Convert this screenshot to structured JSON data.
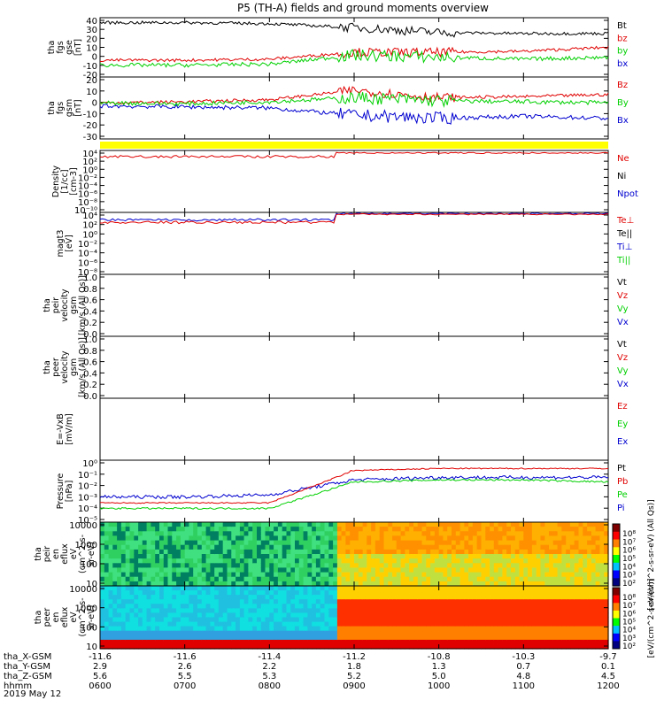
{
  "title": "P5 (TH-A) fields and ground moments overview",
  "colors": {
    "black": "#000000",
    "red": "#e00000",
    "green": "#00d000",
    "blue": "#0000d0",
    "yellow": "#ffff00",
    "frame": "#000000"
  },
  "time_ticks": [
    "0600",
    "0700",
    "0800",
    "0900",
    "1000",
    "1100",
    "1200"
  ],
  "time_tick_rows": [
    {
      "label": "tha_X-GSM",
      "values": [
        "-11.6",
        "-11.6",
        "-11.4",
        "-11.2",
        "-10.8",
        "-10.3",
        "-9.7"
      ]
    },
    {
      "label": "tha_Y-GSM",
      "values": [
        "2.9",
        "2.6",
        "2.2",
        "1.8",
        "1.3",
        "0.7",
        "0.1"
      ]
    },
    {
      "label": "tha_Z-GSM",
      "values": [
        "5.6",
        "5.5",
        "5.3",
        "5.2",
        "5.0",
        "4.8",
        "4.5"
      ]
    },
    {
      "label": "hhmm",
      "values": [
        "0600",
        "0700",
        "0800",
        "0900",
        "1000",
        "1100",
        "1200"
      ]
    }
  ],
  "date_label": "2019 May 12",
  "panels": [
    {
      "ylabel": [
        "tha",
        "fgs",
        "gse",
        "[nT]"
      ],
      "ticks": [
        "40",
        "30",
        "20",
        "10",
        "0",
        "-10",
        "-20"
      ],
      "legend": [
        {
          "t": "Bt",
          "c": "black"
        },
        {
          "t": "bz",
          "c": "red"
        },
        {
          "t": "by",
          "c": "green"
        },
        {
          "t": "bx",
          "c": "blue"
        }
      ]
    },
    {
      "ylabel": [
        "tha",
        "fgs",
        "gsm",
        "[nT]"
      ],
      "ticks": [
        "20",
        "10",
        "0",
        "-10",
        "-20",
        "-30"
      ],
      "legend": [
        {
          "t": "Bz",
          "c": "red"
        },
        {
          "t": "By",
          "c": "green"
        },
        {
          "t": "Bx",
          "c": "blue"
        }
      ]
    },
    {
      "ylabel": [
        "Density",
        "[1/cc]",
        "[cm-3]"
      ],
      "ticks": [
        "10⁴",
        "10²",
        "10⁰",
        "10⁻²",
        "10⁻⁴",
        "10⁻⁶",
        "10⁻⁸",
        "10⁻¹⁰"
      ],
      "legend": [
        {
          "t": "Ne",
          "c": "red"
        },
        {
          "t": "Ni",
          "c": "black"
        },
        {
          "t": "Npot",
          "c": "blue"
        }
      ]
    },
    {
      "ylabel": [
        "magt3",
        "[eV]"
      ],
      "ticks": [
        "10⁴",
        "10²",
        "10⁰",
        "10⁻²",
        "10⁻⁴",
        "10⁻⁶",
        "10⁻⁸"
      ],
      "legend": [
        {
          "t": "Te⊥",
          "c": "red"
        },
        {
          "t": "Te||",
          "c": "black"
        },
        {
          "t": "Ti⊥",
          "c": "blue"
        },
        {
          "t": "Ti||",
          "c": "green"
        }
      ]
    },
    {
      "ylabel": [
        "tha",
        "peir",
        "velocity",
        "gsm",
        "[km/s (All Qs)]"
      ],
      "ticks": [
        "1.0",
        "0.8",
        "0.6",
        "0.4",
        "0.2",
        "0.0"
      ],
      "legend": [
        {
          "t": "Vt",
          "c": "black"
        },
        {
          "t": "Vz",
          "c": "red"
        },
        {
          "t": "Vy",
          "c": "green"
        },
        {
          "t": "Vx",
          "c": "blue"
        }
      ]
    },
    {
      "ylabel": [
        "tha",
        "peer",
        "velocity",
        "gsm",
        "[km/s (All Qs)]"
      ],
      "ticks": [
        "1.0",
        "0.8",
        "0.6",
        "0.4",
        "0.2",
        "0.0"
      ],
      "legend": [
        {
          "t": "Vt",
          "c": "black"
        },
        {
          "t": "Vz",
          "c": "red"
        },
        {
          "t": "Vy",
          "c": "green"
        },
        {
          "t": "Vx",
          "c": "blue"
        }
      ]
    },
    {
      "ylabel": [
        "E=-VxB",
        "[mV/m]"
      ],
      "ticks": [],
      "legend": [
        {
          "t": "Ez",
          "c": "red"
        },
        {
          "t": "Ey",
          "c": "green"
        },
        {
          "t": "Ex",
          "c": "blue"
        }
      ]
    },
    {
      "ylabel": [
        "Pressure",
        "[nPa]"
      ],
      "ticks": [
        "10⁰",
        "10⁻¹",
        "10⁻²",
        "10⁻³",
        "10⁻⁴",
        "10⁻⁵"
      ],
      "legend": [
        {
          "t": "Pt",
          "c": "black"
        },
        {
          "t": "Pb",
          "c": "red"
        },
        {
          "t": "Pe",
          "c": "green"
        },
        {
          "t": "Pi",
          "c": "blue"
        }
      ]
    },
    {
      "ylabel": [
        "tha",
        "peir",
        "en",
        "eflux",
        "eV",
        "(cm^2-s-",
        "sr-eV)"
      ],
      "ticks": [
        "10000",
        "1000",
        "100",
        "10"
      ],
      "legend": []
    },
    {
      "ylabel": [
        "tha",
        "peer",
        "en",
        "eflux",
        "eV",
        "(cm^2-s-",
        "sr-eV)"
      ],
      "ticks": [
        "10000",
        "1000",
        "100",
        "10"
      ],
      "legend": []
    }
  ],
  "colorbar_ion": {
    "label": "[eV/(cm^2-s-sr-eV) (All Qs)]",
    "ticks": [
      "10⁸",
      "10⁷",
      "10⁶",
      "10⁵",
      "10⁴",
      "10³",
      "10²"
    ]
  },
  "colorbar_ele": {
    "label": "[eV/(cm^2-s-sr-eV)]",
    "ticks": [
      "10⁸",
      "10⁷",
      "10⁶",
      "10⁵",
      "10⁴",
      "10³",
      "10²"
    ]
  },
  "chart_data": {
    "type": "line",
    "title": "P5 (TH-A) fields and ground moments overview",
    "x": [
      "0600",
      "0700",
      "0800",
      "0900",
      "1000",
      "1100",
      "1200"
    ],
    "date": "2019 May 12",
    "series": [
      {
        "name": "Bt",
        "panel": 0,
        "values": [
          35,
          35,
          34,
          30,
          25,
          24,
          24
        ]
      },
      {
        "name": "bz",
        "panel": 0,
        "values": [
          -3,
          -3,
          -2,
          5,
          5,
          6,
          10
        ]
      },
      {
        "name": "by",
        "panel": 0,
        "values": [
          -8,
          -8,
          -7,
          2,
          0,
          -2,
          0
        ]
      },
      {
        "name": "bx",
        "panel": 0,
        "values": [
          -8,
          -8,
          -7,
          2,
          0,
          -2,
          0
        ]
      },
      {
        "name": "Bz",
        "panel": 1,
        "values": [
          0,
          1,
          3,
          12,
          5,
          6,
          8
        ]
      },
      {
        "name": "By",
        "panel": 1,
        "values": [
          0,
          -1,
          1,
          5,
          2,
          1,
          0
        ]
      },
      {
        "name": "Bx",
        "panel": 1,
        "values": [
          -3,
          -4,
          -5,
          -12,
          -15,
          -13,
          -15
        ]
      },
      {
        "name": "Pt",
        "panel": 7,
        "values": [
          0.0003,
          0.0003,
          0.0004,
          0.2,
          0.25,
          0.3,
          0.3
        ]
      },
      {
        "name": "Pb",
        "panel": 7,
        "values": [
          0.0003,
          0.0003,
          0.0003,
          0.2,
          0.3,
          0.3,
          0.3
        ]
      },
      {
        "name": "Pe",
        "panel": 7,
        "values": [
          0.0001,
          0.0001,
          0.0001,
          0.02,
          0.03,
          0.03,
          0.02
        ]
      },
      {
        "name": "Pi",
        "panel": 7,
        "values": [
          0.001,
          0.001,
          0.0015,
          0.03,
          0.05,
          0.05,
          0.05
        ]
      }
    ]
  }
}
